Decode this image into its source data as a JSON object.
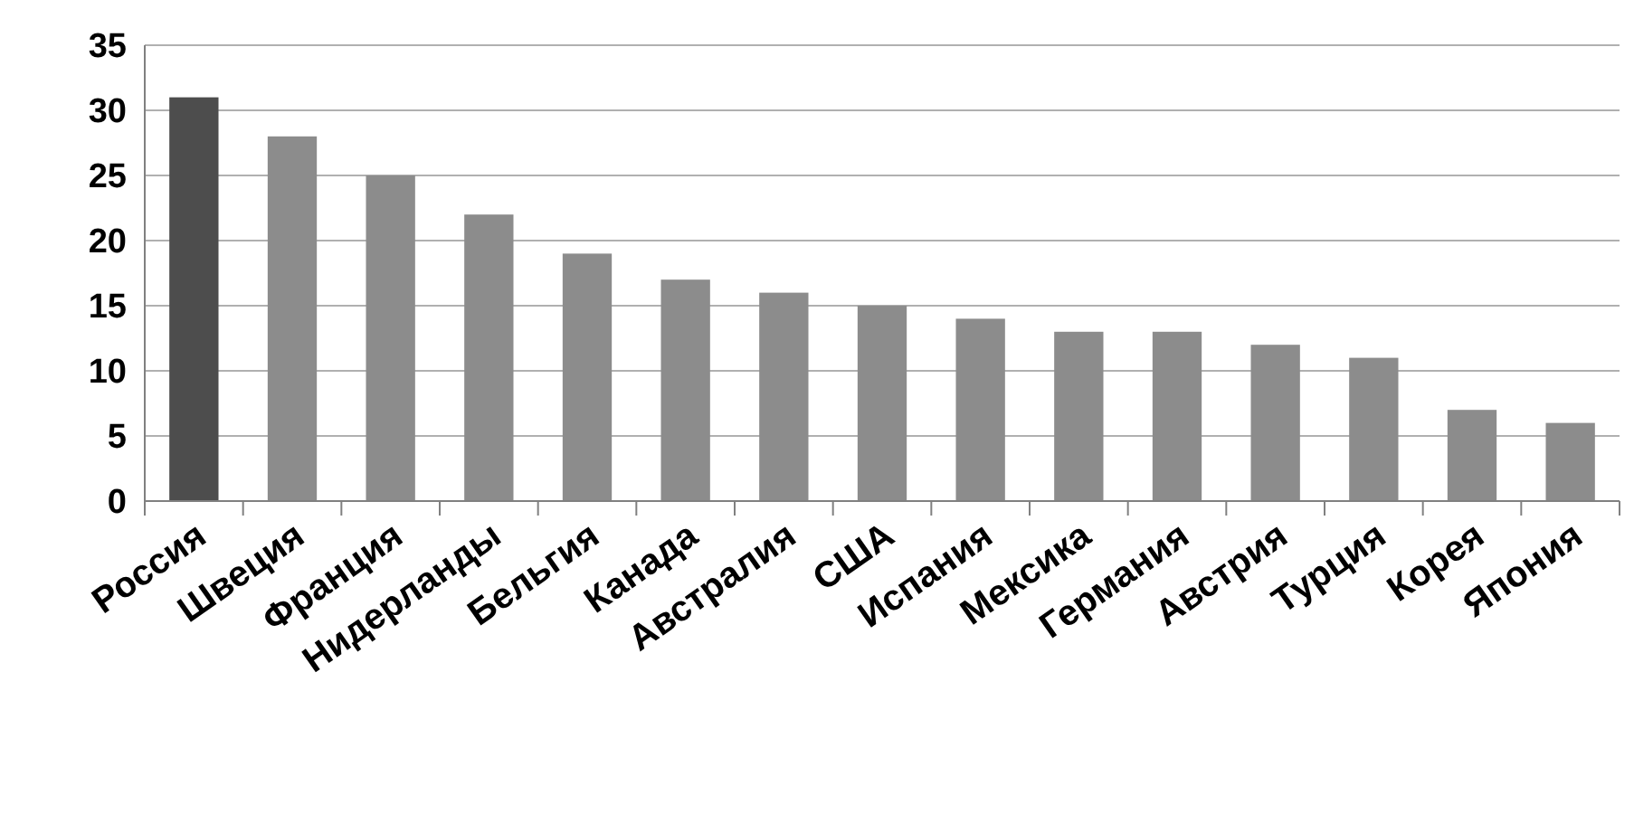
{
  "chart_data": {
    "type": "bar",
    "categories": [
      "Россия",
      "Швеция",
      "Франция",
      "Нидерланды",
      "Бельгия",
      "Канада",
      "Австралия",
      "США",
      "Испания",
      "Мексика",
      "Германия",
      "Австрия",
      "Турция",
      "Корея",
      "Япония"
    ],
    "values": [
      31,
      28,
      25,
      22,
      19,
      17,
      16,
      15,
      14,
      13,
      13,
      12,
      11,
      7,
      6
    ],
    "colors": [
      "#4d4d4d",
      "#8c8c8c",
      "#8c8c8c",
      "#8c8c8c",
      "#8c8c8c",
      "#8c8c8c",
      "#8c8c8c",
      "#8c8c8c",
      "#8c8c8c",
      "#8c8c8c",
      "#8c8c8c",
      "#8c8c8c",
      "#8c8c8c",
      "#8c8c8c",
      "#8c8c8c"
    ],
    "ylim": [
      0,
      35
    ],
    "yticks": [
      0,
      5,
      10,
      15,
      20,
      25,
      30,
      35
    ],
    "grid": "y"
  }
}
